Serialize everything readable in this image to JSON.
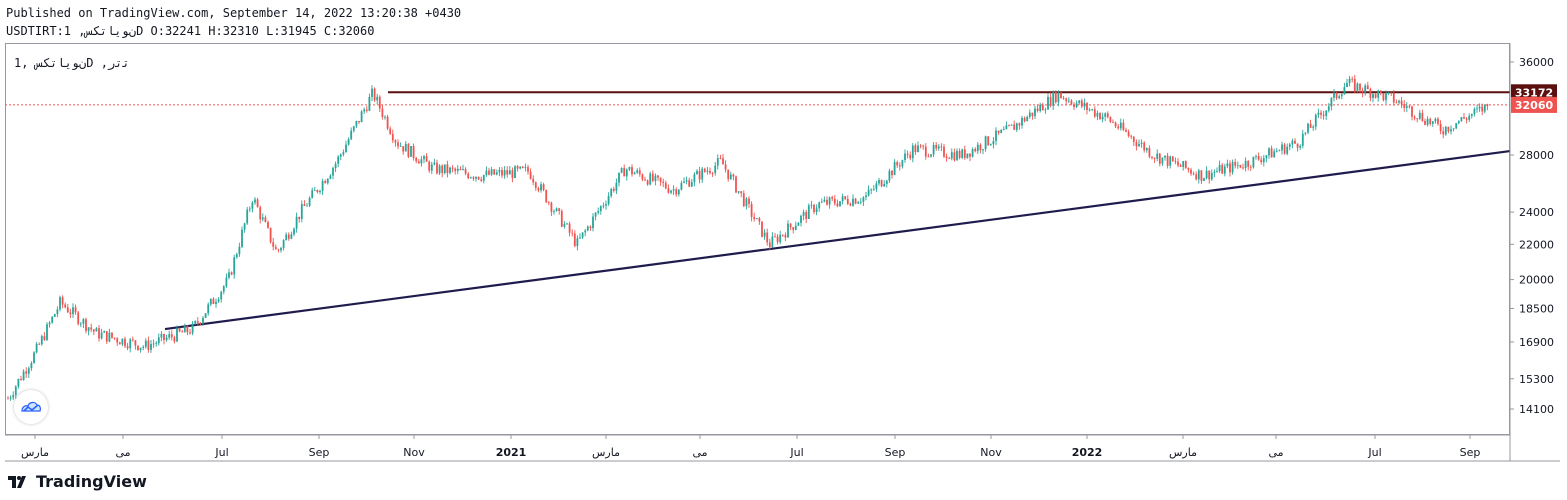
{
  "header": {
    "published": "Published on TradingView.com, September 14, 2022 13:20:38 +0430",
    "symbol_line": "USDTIRT:ﻥﻮﯾﺎﺗﮑﺲ, 1D O:32241 H:32310 L:31945 C:32060"
  },
  "legend": {
    "text": "ﻥﻮﯾﺎﺗﮑﺲ ,1D ,ﺗﺗﺭ"
  },
  "brand": {
    "name": "TradingView"
  },
  "price_badges": {
    "resistance": {
      "value": "33172",
      "color": "#5b0f0f"
    },
    "last": {
      "value": "32060",
      "color": "#ef5350"
    }
  },
  "colors": {
    "up": "#26a69a",
    "down": "#ef5350",
    "resistance": "#5b0f0f",
    "trendline": "#1f1c4d",
    "axis": "#9598a1"
  },
  "chart_data": {
    "type": "candlestick",
    "symbol": "USDTIRT",
    "interval": "1D",
    "ohlc_last": {
      "open": 32241,
      "high": 32310,
      "low": 31945,
      "close": 32060
    },
    "y_scale": "log",
    "y_ticks": [
      36000,
      28000,
      24000,
      22000,
      20000,
      18500,
      16900,
      15300,
      14100
    ],
    "x_ticks": [
      "ﻣﺎﺭﺱ",
      "ﻣﯽ",
      "Jul",
      "Sep",
      "Nov",
      "2021",
      "ﻣﺎﺭﺱ",
      "ﻣﯽ",
      "Jul",
      "Sep",
      "Nov",
      "2022",
      "ﻣﺎﺭﺱ",
      "ﻣﯽ",
      "Jul",
      "Sep"
    ],
    "x_ticks_bold": [
      "2021",
      "2022"
    ],
    "resistance_level": 33172,
    "last_price": 32060,
    "trendline": {
      "start": {
        "date": "2020-06",
        "price": 17500
      },
      "end": {
        "date": "2022-09",
        "price": 28300
      }
    },
    "price_path": [
      [
        "2020-02",
        14000
      ],
      [
        "2020-03",
        16500
      ],
      [
        "2020-03",
        18800
      ],
      [
        "2020-04",
        17300
      ],
      [
        "2020-05",
        16700
      ],
      [
        "2020-06",
        17500
      ],
      [
        "2020-07",
        20000
      ],
      [
        "2020-07",
        25000
      ],
      [
        "2020-08",
        21500
      ],
      [
        "2020-08",
        24000
      ],
      [
        "2020-09",
        27500
      ],
      [
        "2020-10",
        33100
      ],
      [
        "2020-10",
        29000
      ],
      [
        "2020-11",
        27000
      ],
      [
        "2020-12",
        26500
      ],
      [
        "2021-01",
        26800
      ],
      [
        "2021-02",
        22000
      ],
      [
        "2021-03",
        27000
      ],
      [
        "2021-04",
        25500
      ],
      [
        "2021-05",
        27500
      ],
      [
        "2021-06",
        22000
      ],
      [
        "2021-07",
        24500
      ],
      [
        "2021-08",
        25000
      ],
      [
        "2021-09",
        28500
      ],
      [
        "2021-10",
        28000
      ],
      [
        "2021-11",
        30000
      ],
      [
        "2021-12",
        33000
      ],
      [
        "2022-01",
        31000
      ],
      [
        "2022-02",
        28000
      ],
      [
        "2022-03",
        26500
      ],
      [
        "2022-04",
        27500
      ],
      [
        "2022-05",
        29000
      ],
      [
        "2022-06",
        34000
      ],
      [
        "2022-07",
        32500
      ],
      [
        "2022-08",
        30000
      ],
      [
        "2022-09",
        32060
      ]
    ]
  }
}
